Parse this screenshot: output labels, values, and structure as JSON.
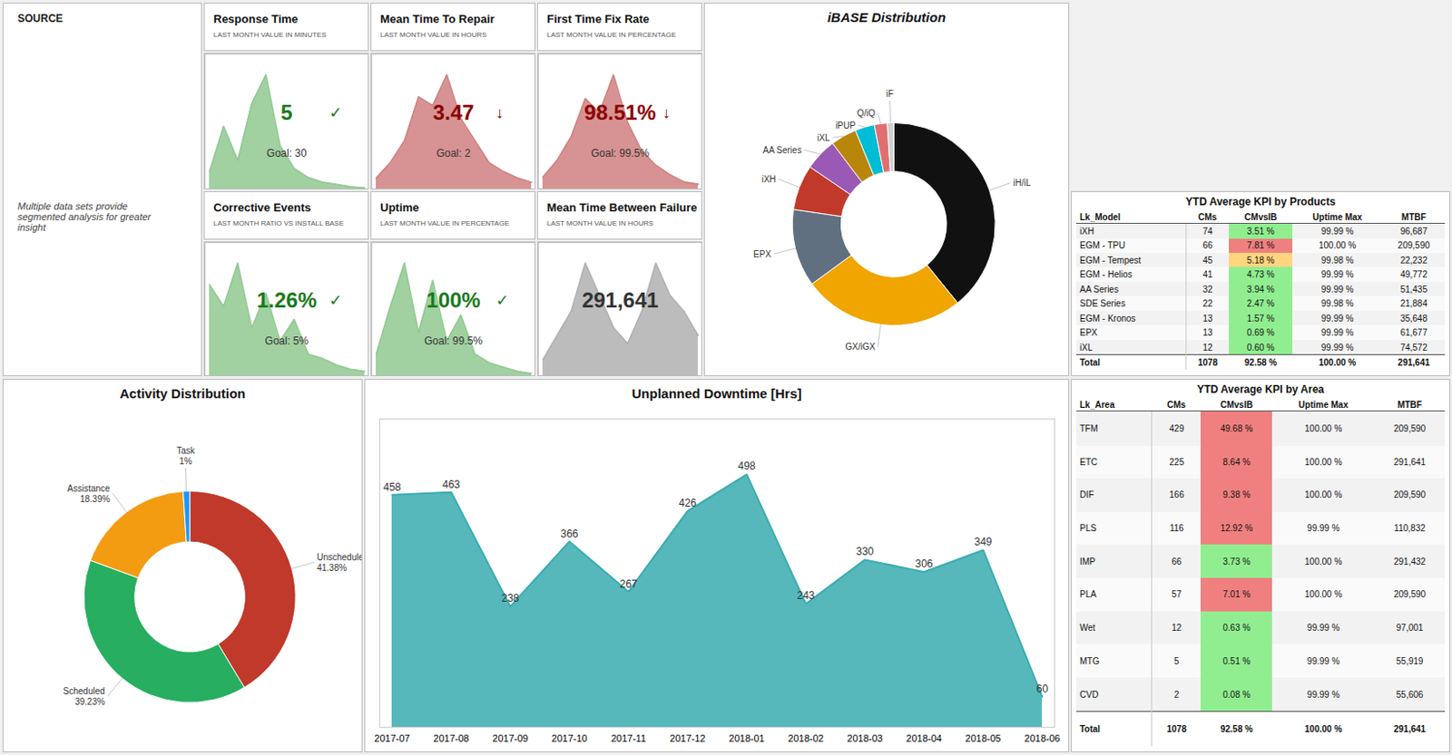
{
  "chart_data": [
    {
      "type": "text",
      "title": "SOURCE",
      "annotations": [
        "Multiple data sets provide\nsegmented analysis for greater\ninsight"
      ]
    },
    {
      "type": "area",
      "title": "Response Time",
      "subtitle": "LAST MONTH VALUE IN MINUTES",
      "categories": [
        null,
        null,
        null,
        null,
        null,
        null,
        null,
        null,
        null,
        null,
        null,
        null
      ],
      "values": [
        15,
        55,
        25,
        75,
        100,
        38,
        18,
        10,
        6,
        4,
        2,
        1
      ],
      "color": "#90c890",
      "ylim": [
        0,
        118
      ],
      "tick_labels": false,
      "annotations": [
        {
          "text": "5",
          "color": "#1a7a1a"
        },
        {
          "text": "✓",
          "color": "#1a7a1a"
        },
        {
          "text": "Goal: 30"
        }
      ]
    },
    {
      "type": "area",
      "title": "Mean Time To Repair",
      "subtitle": "LAST MONTH VALUE IN HOURS",
      "categories": [
        null,
        null,
        null,
        null,
        null,
        null,
        null,
        null,
        null,
        null,
        null,
        null
      ],
      "values": [
        5,
        12,
        22,
        42,
        38,
        52,
        32,
        22,
        12,
        8,
        5,
        3
      ],
      "color": "#d08080",
      "ylim": [
        0,
        61.36
      ],
      "tick_labels": false,
      "annotations": [
        {
          "text": "3.47",
          "color": "#8b0000"
        },
        {
          "text": "↓",
          "color": "#8b0000"
        },
        {
          "text": "Goal: 2"
        }
      ]
    },
    {
      "type": "area",
      "title": "First Time Fix Rate",
      "subtitle": "LAST MONTH VALUE IN PERCENTAGE",
      "categories": [
        null,
        null,
        null,
        null,
        null,
        null,
        null,
        null,
        null,
        null,
        null,
        null
      ],
      "values": [
        5,
        12,
        22,
        38,
        32,
        48,
        28,
        16,
        10,
        6,
        3,
        2
      ],
      "color": "#d08080",
      "ylim": [
        0,
        56.64
      ],
      "tick_labels": false,
      "annotations": [
        {
          "text": "98.51%",
          "color": "#8b0000"
        },
        {
          "text": "↓",
          "color": "#8b0000"
        },
        {
          "text": "Goal: 99.5%"
        }
      ]
    },
    {
      "type": "area",
      "title": "Corrective Events",
      "subtitle": "LAST MONTH RATIO VS INSTALL BASE",
      "categories": [
        null,
        null,
        null,
        null,
        null,
        null,
        null,
        null,
        null,
        null,
        null,
        null
      ],
      "values": [
        42,
        32,
        52,
        22,
        38,
        16,
        26,
        10,
        8,
        5,
        3,
        2
      ],
      "color": "#90c890",
      "ylim": [
        0,
        61.36
      ],
      "tick_labels": false,
      "annotations": [
        {
          "text": "1.26%",
          "color": "#1a7a1a"
        },
        {
          "text": "✓",
          "color": "#1a7a1a"
        },
        {
          "text": "Goal: 5%"
        }
      ]
    },
    {
      "type": "area",
      "title": "Uptime",
      "subtitle": "LAST MONTH VALUE IN PERCENTAGE",
      "categories": [
        null,
        null,
        null,
        null,
        null,
        null,
        null,
        null,
        null,
        null,
        null,
        null
      ],
      "values": [
        5,
        16,
        26,
        10,
        22,
        8,
        14,
        5,
        3,
        2,
        1,
        0.5
      ],
      "color": "#90c890",
      "ylim": [
        0,
        30.68
      ],
      "tick_labels": false,
      "annotations": [
        {
          "text": "100%",
          "color": "#1a7a1a"
        },
        {
          "text": "✓",
          "color": "#1a7a1a"
        },
        {
          "text": "Goal: 99.5%"
        }
      ]
    },
    {
      "type": "area",
      "title": "Mean Time Between Failure",
      "subtitle": "LAST MONTH VALUE IN HOURS",
      "categories": [
        null,
        null,
        null,
        null,
        null,
        null,
        null,
        null,
        null,
        null,
        null,
        null
      ],
      "values": [
        2,
        5,
        8,
        14,
        10,
        6,
        4,
        8,
        14,
        10,
        8,
        5
      ],
      "color": "#b0b0b0",
      "ylim": [
        0,
        16.52
      ],
      "tick_labels": false,
      "annotations": [
        {
          "text": "291,641",
          "color": "#333333"
        }
      ]
    },
    {
      "type": "pie",
      "title": "iBASE Distribution",
      "categories": [
        "iH/iL",
        "GX/iGX",
        "EPX",
        "iXH",
        "AA Series",
        "iXL",
        "iPUP",
        "Q/iQ",
        "iF"
      ],
      "values": [
        38,
        25,
        12,
        7,
        5,
        4,
        3,
        2,
        1
      ],
      "colors": [
        "#111111",
        "#f0a500",
        "#607080",
        "#c0392b",
        "#9b59b6",
        "#b8860b",
        "#00bcd4",
        "#e07070",
        "#d0d0d0"
      ]
    },
    {
      "type": "pie",
      "title": "Activity Distribution",
      "categories": [
        "Unscheduled...",
        "Scheduled",
        "Assistance",
        "Task"
      ],
      "values": [
        41.38,
        39.23,
        18.39,
        1
      ],
      "value_labels": [
        "41.38%",
        "39.23%",
        "18.39%",
        "1%"
      ],
      "colors": [
        "#c0392b",
        "#27ae60",
        "#f39c12",
        "#2196f3"
      ],
      "data_labels": true
    },
    {
      "type": "area",
      "title": "Unplanned Downtime [Hrs]",
      "categories": [
        "2017-07",
        "2017-08",
        "2017-09",
        "2017-10",
        "2017-11",
        "2017-12",
        "2018-01",
        "2018-02",
        "2018-03",
        "2018-04",
        "2018-05",
        "2018-06"
      ],
      "values": [
        458,
        463,
        238,
        366,
        267,
        426,
        498,
        243,
        330,
        306,
        349,
        60
      ],
      "color": "#3aacb0",
      "ylim": [
        0,
        607.56
      ],
      "tick_labels": "x",
      "data_labels": true
    },
    {
      "type": "table",
      "title": "YTD Average KPI by Products",
      "columns": [
        "Lk_Model",
        "CMs",
        "CMvsIB",
        "Uptime Max",
        "MTBF"
      ],
      "rows": [
        [
          "iXH",
          74,
          "3.51 %",
          "99.99 %",
          "96,687"
        ],
        [
          "EGM - TPU",
          66,
          "7.81 %",
          "100.00 %",
          "209,590"
        ],
        [
          "EGM - Tempest",
          45,
          "5.18 %",
          "99.98 %",
          "22,232"
        ],
        [
          "EGM - Helios",
          41,
          "4.73 %",
          "99.99 %",
          "49,772"
        ],
        [
          "AA Series",
          32,
          "3.94 %",
          "99.99 %",
          "51,435"
        ],
        [
          "SDE Series",
          22,
          "2.47 %",
          "99.98 %",
          "21,884"
        ],
        [
          "EGM - Kronos",
          13,
          "1.57 %",
          "99.99 %",
          "35,648"
        ],
        [
          "EPX",
          13,
          "0.69 %",
          "99.99 %",
          "61,677"
        ],
        [
          "iXL",
          12,
          "0.60 %",
          "99.99 %",
          "74,572"
        ]
      ],
      "total": [
        "Total",
        "1078",
        "92.58 %",
        "100.00 %",
        "291,641"
      ],
      "colors": [
        "#90ee90",
        "#f08080",
        "#ffd580",
        "#90ee90",
        "#90ee90",
        "#90ee90",
        "#90ee90",
        "#90ee90",
        "#90ee90"
      ]
    },
    {
      "type": "table",
      "title": "YTD Average KPI by Area",
      "columns": [
        "Lk_Area",
        "CMs",
        "CMvsIB",
        "Uptime Max",
        "MTBF"
      ],
      "rows": [
        [
          "TFM",
          429,
          "49.68 %",
          "100.00 %",
          "209,590"
        ],
        [
          "ETC",
          225,
          "8.64 %",
          "100.00 %",
          "291,641"
        ],
        [
          "DIF",
          166,
          "9.38 %",
          "100.00 %",
          "209,590"
        ],
        [
          "PLS",
          116,
          "12.92 %",
          "99.99 %",
          "110,832"
        ],
        [
          "IMP",
          66,
          "3.73 %",
          "100.00 %",
          "291,432"
        ],
        [
          "PLA",
          57,
          "7.01 %",
          "100.00 %",
          "209,590"
        ],
        [
          "Wet",
          12,
          "0.63 %",
          "99.99 %",
          "97,001"
        ],
        [
          "MTG",
          5,
          "0.51 %",
          "99.99 %",
          "55,919"
        ],
        [
          "CVD",
          2,
          "0.08 %",
          "99.99 %",
          "55,606"
        ]
      ],
      "total": [
        "Total",
        "1078",
        "92.58 %",
        "100.00 %",
        "291,641"
      ],
      "colors": [
        "#f08080",
        "#f08080",
        "#f08080",
        "#f08080",
        "#90ee90",
        "#f08080",
        "#90ee90",
        "#90ee90",
        "#90ee90"
      ]
    }
  ]
}
